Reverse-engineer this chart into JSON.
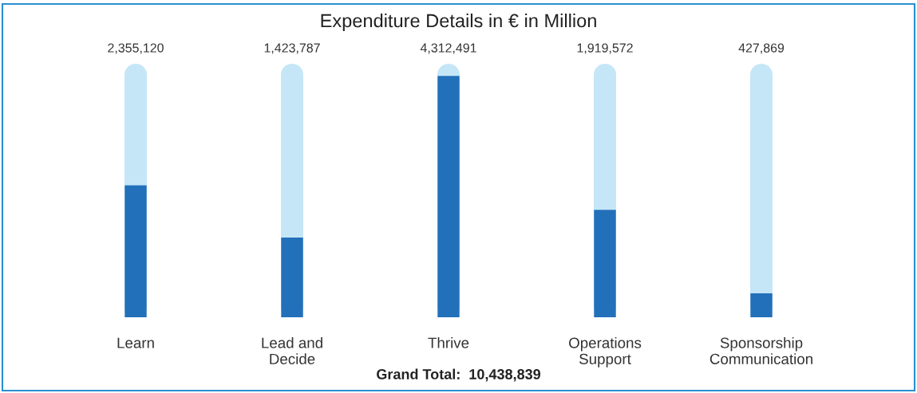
{
  "chart_data": {
    "type": "bar",
    "title": "Expenditure Details in € in Million",
    "categories": [
      "Learn",
      "Lead and\nDecide",
      "Thrive",
      "Operations\nSupport",
      "Sponsorship\nCommunication"
    ],
    "values": [
      2355120,
      1423787,
      4312491,
      1919572,
      427869
    ],
    "value_labels": [
      "2,355,120",
      "1,423,787",
      "4,312,491",
      "1,919,572",
      "427,869"
    ],
    "color": "#2370ba",
    "tick_labels": "x",
    "grid": "x",
    "annotations": [
      "Grand Total:  10,438,839"
    ]
  }
}
